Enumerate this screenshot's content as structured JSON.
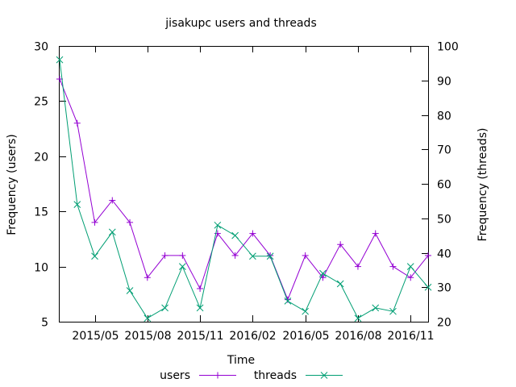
{
  "chart_data": {
    "type": "line",
    "title": "jisakupc users and threads",
    "xlabel": "Time",
    "ylabel_left": "Frequency (users)",
    "ylabel_right": "Frequency (threads)",
    "x": [
      "2015-03",
      "2015-04",
      "2015-05",
      "2015-06",
      "2015-07",
      "2015-08",
      "2015-09",
      "2015-10",
      "2015-11",
      "2015-12",
      "2016-01",
      "2016-02",
      "2016-03",
      "2016-04",
      "2016-05",
      "2016-06",
      "2016-07",
      "2016-08",
      "2016-09",
      "2016-10",
      "2016-11",
      "2016-12"
    ],
    "xlim": [
      "2015-03",
      "2016-12"
    ],
    "x_ticks": [
      {
        "date": "2015-05",
        "label": "2015/05"
      },
      {
        "date": "2015-08",
        "label": "2015/08"
      },
      {
        "date": "2015-11",
        "label": "2015/11"
      },
      {
        "date": "2016-02",
        "label": "2016/02"
      },
      {
        "date": "2016-05",
        "label": "2016/05"
      },
      {
        "date": "2016-08",
        "label": "2016/08"
      },
      {
        "date": "2016-11",
        "label": "2016/11"
      }
    ],
    "y_left": {
      "lim": [
        5,
        30
      ],
      "ticks": [
        5,
        10,
        15,
        20,
        25,
        30
      ]
    },
    "y_right": {
      "lim": [
        20,
        100
      ],
      "ticks": [
        20,
        30,
        40,
        50,
        60,
        70,
        80,
        90,
        100
      ]
    },
    "grid": false,
    "legend_position": "bottom",
    "series": [
      {
        "name": "users",
        "axis": "left",
        "marker": "+",
        "color": "#9400d3",
        "values": [
          27,
          23,
          14,
          16,
          14,
          9,
          11,
          11,
          8,
          13,
          11,
          13,
          11,
          7,
          11,
          9,
          12,
          10,
          13,
          10,
          9,
          11
        ]
      },
      {
        "name": "threads",
        "axis": "right",
        "marker": "x",
        "color": "#009e73",
        "values": [
          96,
          54,
          39,
          46,
          29,
          21,
          24,
          36,
          24,
          48,
          45,
          39,
          39,
          26,
          23,
          34,
          31,
          21,
          24,
          23,
          36,
          30
        ]
      }
    ]
  }
}
